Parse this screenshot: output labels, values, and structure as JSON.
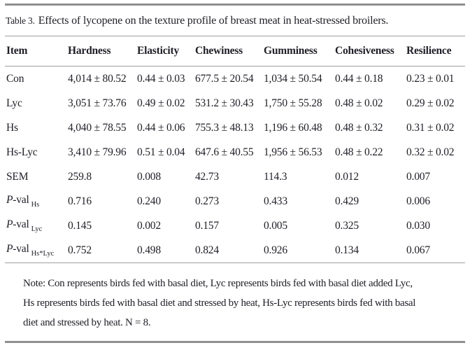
{
  "title": {
    "label": "Table 3.",
    "text": "Effects of lycopene on the texture profile of breast meat in heat-stressed broilers."
  },
  "table": {
    "columns": [
      "Item",
      "Hardness",
      "Elasticity",
      "Chewiness",
      "Gumminess",
      "Cohesiveness",
      "Resilience"
    ],
    "rows": [
      {
        "label_head": "",
        "label_rest": "Con",
        "label_sub": "",
        "values": [
          "4,014 ± 80.52",
          "0.44 ± 0.03",
          "677.5 ± 20.54",
          "1,034 ± 50.54",
          "0.44 ± 0.18",
          "0.23 ± 0.01"
        ]
      },
      {
        "label_head": "",
        "label_rest": "Lyc",
        "label_sub": "",
        "values": [
          "3,051 ± 73.76",
          "0.49 ± 0.02",
          "531.2 ± 30.43",
          "1,750 ± 55.28",
          "0.48 ± 0.02",
          "0.29 ± 0.02"
        ]
      },
      {
        "label_head": "",
        "label_rest": "Hs",
        "label_sub": "",
        "values": [
          "4,040 ± 78.55",
          "0.44 ± 0.06",
          "755.3 ± 48.13",
          "1,196 ± 60.48",
          "0.48 ± 0.32",
          "0.31 ± 0.02"
        ]
      },
      {
        "label_head": "",
        "label_rest": "Hs-Lyc",
        "label_sub": "",
        "values": [
          "3,410 ± 79.96",
          "0.51 ± 0.04",
          "647.6 ± 40.55",
          "1,956 ± 56.53",
          "0.48 ± 0.22",
          "0.32 ± 0.02"
        ]
      },
      {
        "label_head": "",
        "label_rest": "SEM",
        "label_sub": "",
        "values": [
          "259.8",
          "0.008",
          "42.73",
          "114.3",
          "0.012",
          "0.007"
        ]
      },
      {
        "label_head": "P",
        "label_rest": "-val",
        "label_sub": "Hs",
        "values": [
          "0.716",
          "0.240",
          "0.273",
          "0.433",
          "0.429",
          "0.006"
        ]
      },
      {
        "label_head": "P",
        "label_rest": "-val",
        "label_sub": "Lyc",
        "values": [
          "0.145",
          "0.002",
          "0.157",
          "0.005",
          "0.325",
          "0.030"
        ]
      },
      {
        "label_head": "P",
        "label_rest": "-val",
        "label_sub": "Hs*Lyc",
        "values": [
          "0.752",
          "0.498",
          "0.824",
          "0.926",
          "0.134",
          "0.067"
        ]
      }
    ]
  },
  "note": {
    "lines": [
      "Note: Con represents birds fed with basal diet, Lyc represents birds fed with basal diet added Lyc,",
      "Hs represents birds fed with basal diet and stressed by heat, Hs-Lyc represents birds fed with basal",
      "diet and stressed by heat. N = 8."
    ]
  },
  "colors": {
    "text": "#1e1e26",
    "rule_heavy": "#8f8f8f",
    "rule_light": "#a0a0a0",
    "background": "#ffffff"
  }
}
